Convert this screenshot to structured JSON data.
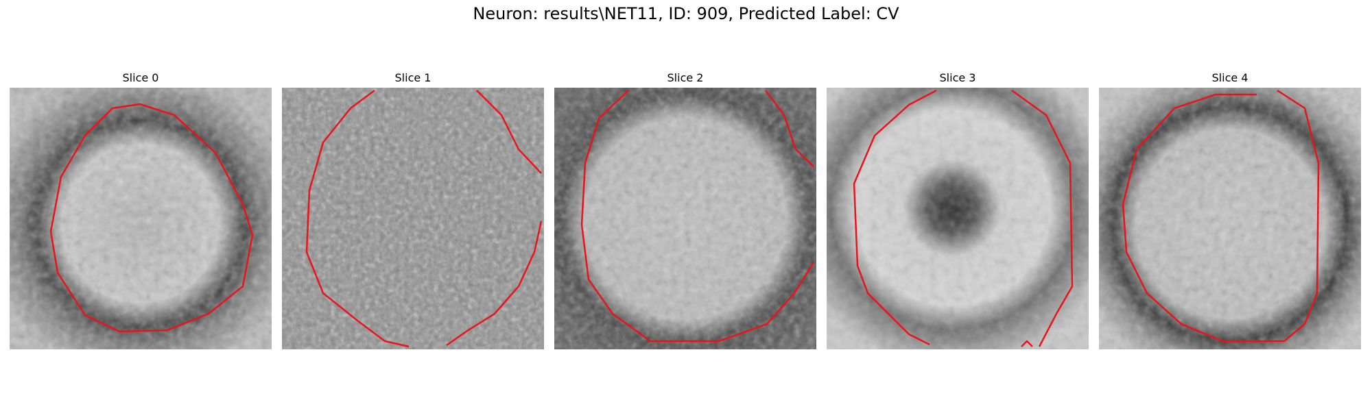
{
  "figure": {
    "title": "Neuron: results\\NET11, ID: 909, Predicted Label: CV"
  },
  "colors": {
    "contour": "#e8141c",
    "background": "#ffffff"
  },
  "panels": [
    {
      "title": "Slice 0"
    },
    {
      "title": "Slice 1"
    },
    {
      "title": "Slice 2"
    },
    {
      "title": "Slice 3"
    },
    {
      "title": "Slice 4"
    }
  ]
}
